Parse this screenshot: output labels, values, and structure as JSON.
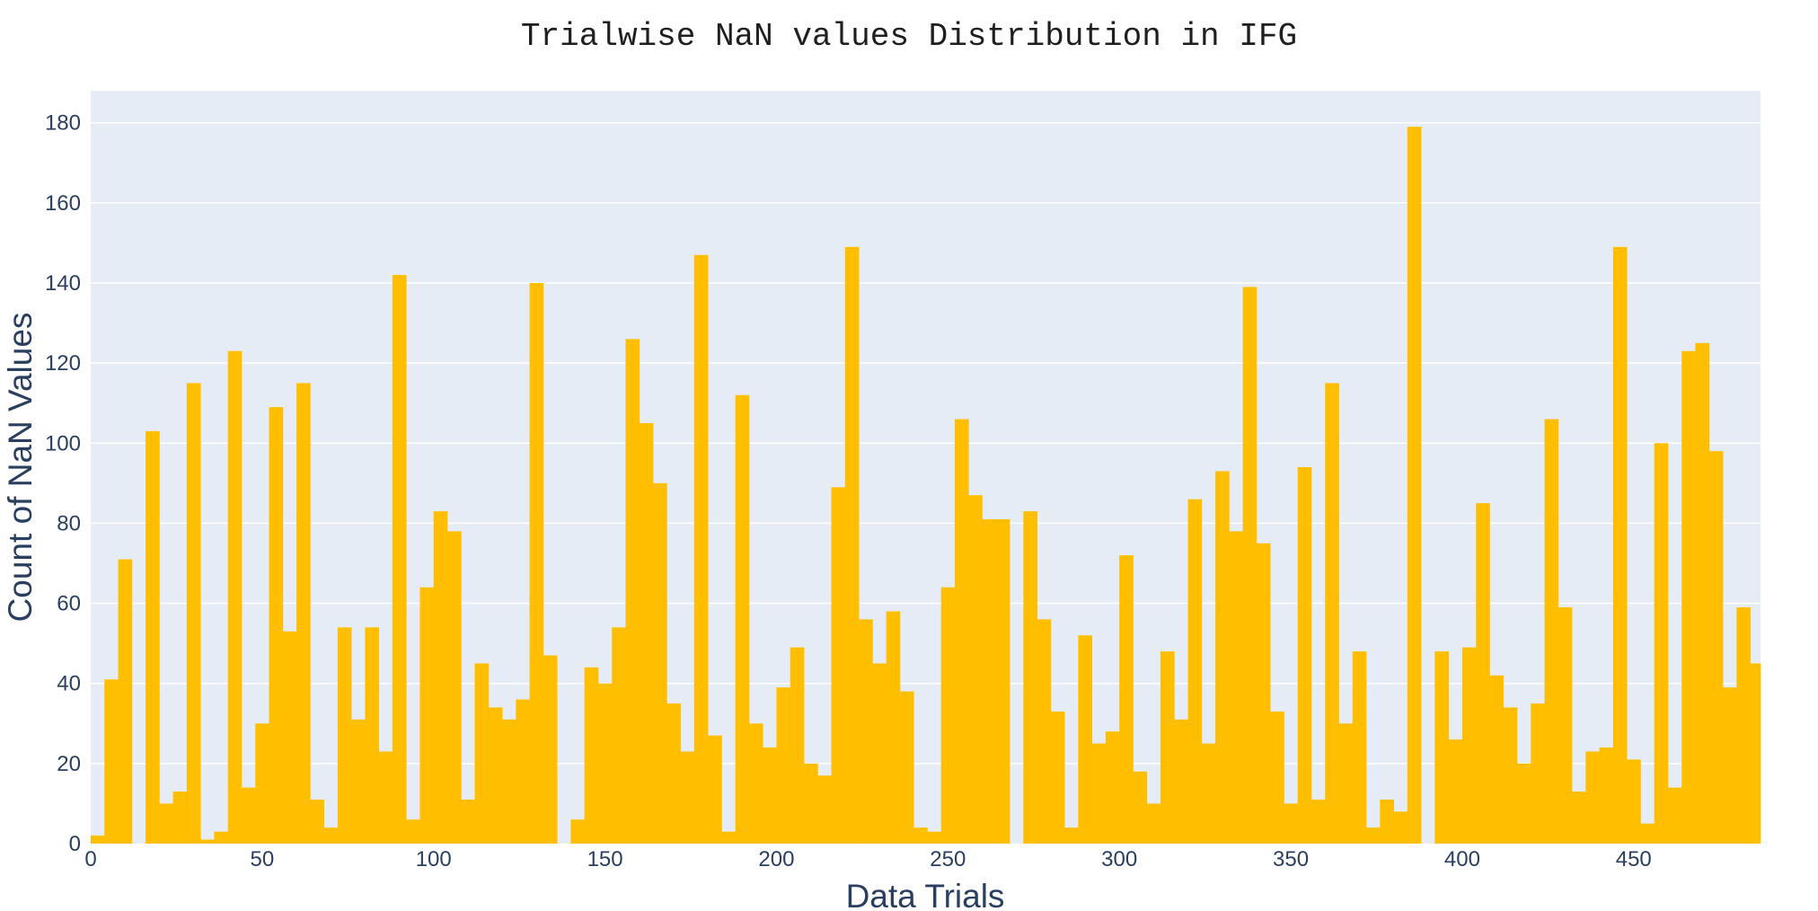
{
  "chart_data": {
    "type": "bar",
    "title": "Trialwise NaN values Distribution in IFG",
    "xlabel": "Data Trials",
    "ylabel": "Count of NaN Values",
    "xlim": [
      0,
      487
    ],
    "ylim": [
      0,
      188
    ],
    "bin_width": 4,
    "x_ticks": [
      0,
      50,
      100,
      150,
      200,
      250,
      300,
      350,
      400,
      450
    ],
    "y_ticks": [
      0,
      20,
      40,
      60,
      80,
      100,
      120,
      140,
      160,
      180
    ],
    "grid": true,
    "colors": {
      "bar": "#FFBF00",
      "plot_bg": "#E5ECF6",
      "grid": "#FFFFFF",
      "text": "#2A3F5F"
    },
    "x": [
      0,
      4,
      8,
      12,
      16,
      20,
      24,
      28,
      32,
      36,
      40,
      44,
      48,
      52,
      56,
      60,
      64,
      68,
      72,
      76,
      80,
      84,
      88,
      92,
      96,
      100,
      104,
      108,
      112,
      116,
      120,
      124,
      128,
      132,
      136,
      140,
      144,
      148,
      152,
      156,
      160,
      164,
      168,
      172,
      176,
      180,
      184,
      188,
      192,
      196,
      200,
      204,
      208,
      212,
      216,
      220,
      224,
      228,
      232,
      236,
      240,
      244,
      248,
      252,
      256,
      260,
      264,
      268,
      272,
      276,
      280,
      284,
      288,
      292,
      296,
      300,
      304,
      308,
      312,
      316,
      320,
      324,
      328,
      332,
      336,
      340,
      344,
      348,
      352,
      356,
      360,
      364,
      368,
      372,
      376,
      380,
      384,
      388,
      392,
      396,
      400,
      404,
      408,
      412,
      416,
      420,
      424,
      428,
      432,
      436,
      440,
      444,
      448,
      452,
      456,
      460,
      464,
      468,
      472,
      476,
      480,
      484
    ],
    "values": [
      2,
      41,
      71,
      0,
      103,
      10,
      13,
      115,
      1,
      3,
      123,
      14,
      30,
      109,
      53,
      115,
      11,
      4,
      54,
      31,
      54,
      23,
      142,
      6,
      64,
      83,
      78,
      11,
      45,
      34,
      31,
      36,
      140,
      47,
      0,
      6,
      44,
      40,
      54,
      126,
      105,
      90,
      35,
      23,
      147,
      27,
      3,
      112,
      30,
      24,
      39,
      49,
      20,
      17,
      89,
      149,
      56,
      45,
      58,
      38,
      4,
      3,
      64,
      106,
      87,
      81,
      81,
      0,
      83,
      56,
      33,
      4,
      52,
      25,
      28,
      72,
      18,
      10,
      48,
      31,
      86,
      25,
      93,
      78,
      139,
      75,
      33,
      10,
      94,
      11,
      115,
      30,
      48,
      4,
      11,
      8,
      179,
      0,
      48,
      26,
      49,
      85,
      42,
      34,
      20,
      35,
      106,
      59,
      13,
      23,
      24,
      149,
      21,
      5,
      100,
      14,
      123,
      125,
      98,
      39,
      59,
      45
    ]
  }
}
